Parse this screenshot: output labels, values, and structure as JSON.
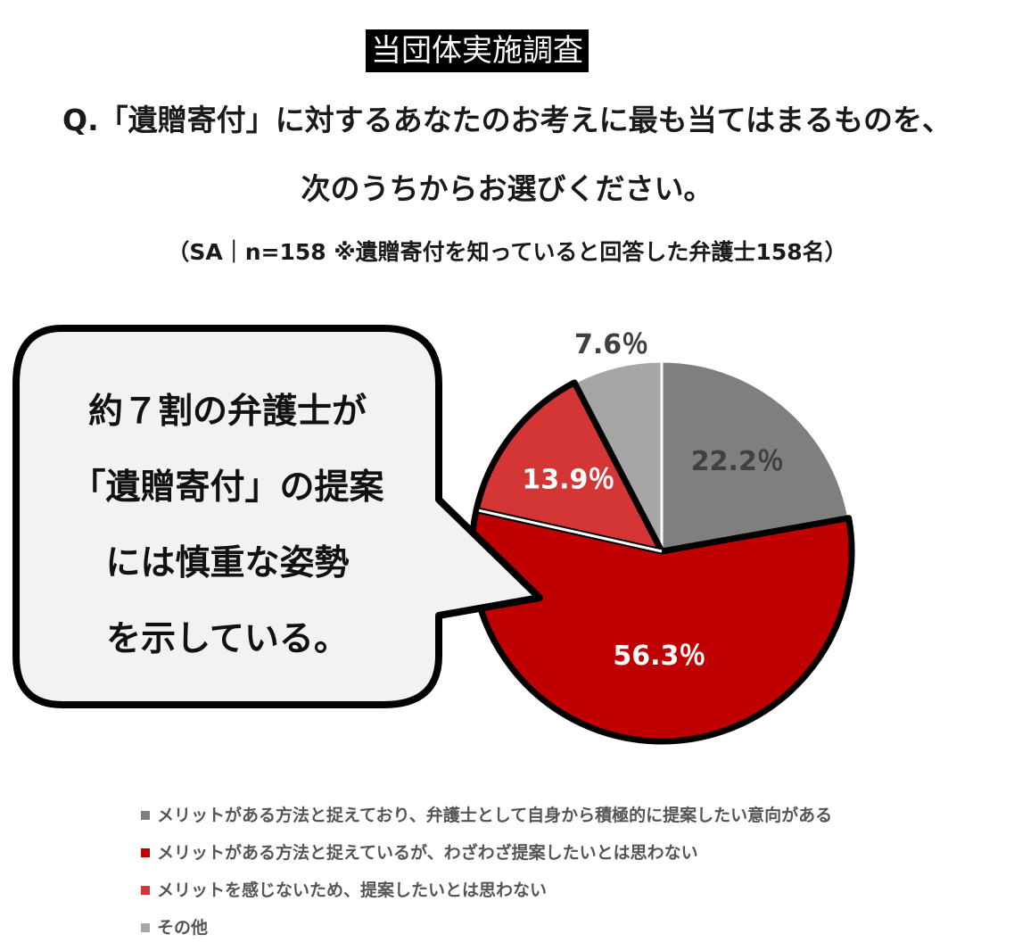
{
  "header": {
    "badge": "当団体実施調査",
    "question_line1": "Q.「遺贈寄付」に対するあなたのお考えに最も当てはまるものを、",
    "question_line2": "次のうちからお選びください。",
    "sample_note": "（SA｜n=158 ※遺贈寄付を知っていると回答した弁護士158名）"
  },
  "callout": {
    "lines": [
      "約７割の弁護士が",
      "「遺贈寄付」の提案",
      "には慎重な姿勢",
      "を示している。"
    ]
  },
  "chart_data": {
    "type": "pie",
    "start_angle_deg": 0,
    "direction": "clockwise",
    "slices": [
      {
        "label": "メリットがある方法と捉えており、弁護士として自身から積極的に提案したい意向がある",
        "value": 22.2,
        "display": "22.2％",
        "color": "#7f7f7f",
        "label_color": "#404040"
      },
      {
        "label": "メリットがある方法と捉えているが、わざわざ提案したいとは思わない",
        "value": 56.3,
        "display": "56.3％",
        "color": "#c00000",
        "label_color": "#ffffff",
        "emphasized": true
      },
      {
        "label": "メリットを感じないため、提案したいとは思わない",
        "value": 13.9,
        "display": "13.9％",
        "color": "#d43535",
        "label_color": "#ffffff",
        "emphasized": true
      },
      {
        "label": "その他",
        "value": 7.6,
        "display": "7.6％",
        "color": "#a6a6a6",
        "label_color": "#404040",
        "label_outside": true
      }
    ],
    "legend_position": "bottom"
  }
}
